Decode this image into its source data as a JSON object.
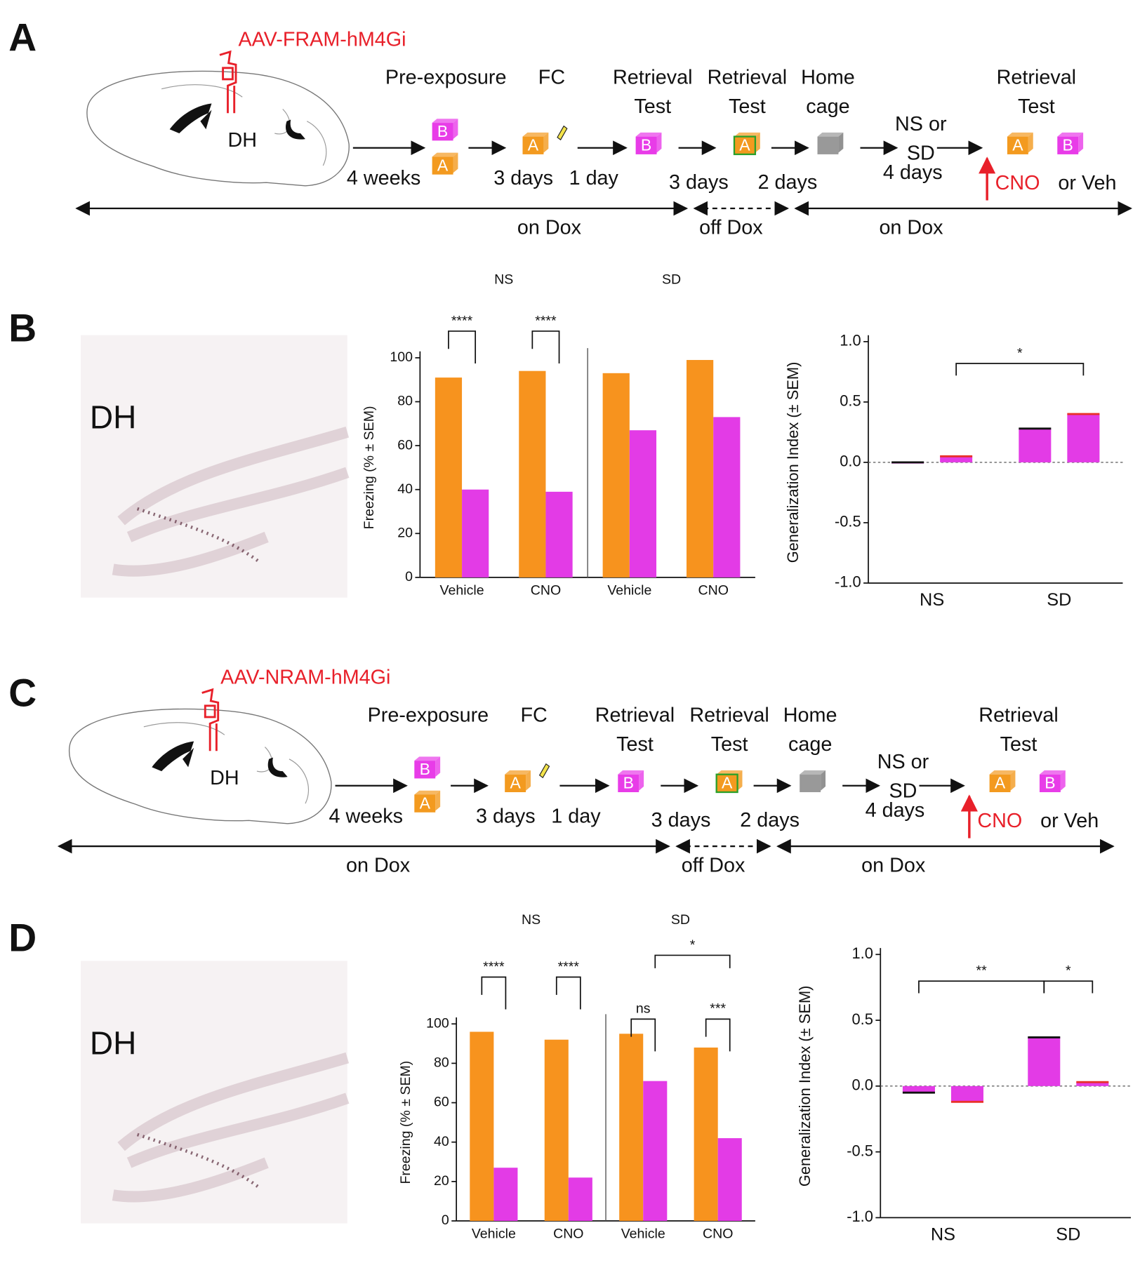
{
  "diagrams": [
    {
      "letter": "A",
      "virus": "AAV-FRAM-hM4Gi",
      "region": "DH",
      "stages": [
        [
          "Pre-exposure"
        ],
        [
          "FC"
        ],
        [
          "Retrieval",
          "Test"
        ],
        [
          "Retrieval",
          "Test"
        ],
        [
          "Home",
          "cage"
        ],
        [
          "NS or",
          "SD"
        ],
        [
          "Retrieval",
          "Test"
        ]
      ],
      "durations": [
        "4 weeks",
        "3 days",
        "1 day",
        "3 days",
        "2 days",
        "4 days"
      ],
      "contexts": [
        "A",
        "B"
      ],
      "injection": [
        "CNO",
        "or Veh"
      ],
      "dox": [
        "on Dox",
        "off Dox",
        "on Dox"
      ]
    },
    {
      "letter": "C",
      "virus": "AAV-NRAM-hM4Gi",
      "region": "DH",
      "stages": [
        [
          "Pre-exposure"
        ],
        [
          "FC"
        ],
        [
          "Retrieval",
          "Test"
        ],
        [
          "Retrieval",
          "Test"
        ],
        [
          "Home",
          "cage"
        ],
        [
          "NS or",
          "SD"
        ],
        [
          "Retrieval",
          "Test"
        ]
      ],
      "durations": [
        "4 weeks",
        "3 days",
        "1 day",
        "3 days",
        "2 days",
        "4 days"
      ],
      "contexts": [
        "A",
        "B"
      ],
      "injection": [
        "CNO",
        "or Veh"
      ],
      "dox": [
        "on Dox",
        "off Dox",
        "on Dox"
      ]
    }
  ],
  "image_panels": [
    {
      "letter": "B",
      "region": "DH"
    },
    {
      "letter": "D",
      "region": "DH"
    }
  ],
  "chart_data": [
    {
      "type": "bar",
      "group_labels": [
        "NS",
        "SD"
      ],
      "categories": [
        "Vehicle",
        "CNO",
        "Vehicle",
        "CNO"
      ],
      "ylabel": "Freezing (% ± SEM)",
      "ylim": [
        0,
        100
      ],
      "yticks": [
        0,
        20,
        40,
        60,
        80,
        100
      ],
      "series": [
        {
          "color": "#f7931e",
          "values": [
            91,
            94,
            93,
            99
          ]
        },
        {
          "color": "#e33be6",
          "values": [
            40,
            39,
            67,
            73
          ]
        }
      ],
      "annotations": [
        "****",
        "****"
      ]
    },
    {
      "type": "dotbar",
      "categories": [
        "NS",
        "SD"
      ],
      "ylabel": "Generalization Index (± SEM)",
      "ylim": [
        -1,
        1
      ],
      "yticks": [
        {
          "value": -1,
          "label": "-1.0"
        },
        {
          "value": -0.5,
          "label": "-0.5"
        },
        {
          "value": 0,
          "label": "0.0"
        },
        {
          "value": 0.5,
          "label": "0.5"
        },
        {
          "value": 1,
          "label": "1.0"
        }
      ],
      "bar_color": "#e33be6",
      "series": [
        {
          "color": "#111111",
          "values": [
            0.0,
            0.28
          ]
        },
        {
          "color": "#e8312a",
          "values": [
            0.05,
            0.4
          ]
        }
      ],
      "annotations": [
        "*"
      ]
    },
    {
      "type": "bar",
      "group_labels": [
        "NS",
        "SD"
      ],
      "categories": [
        "Vehicle",
        "CNO",
        "Vehicle",
        "CNO"
      ],
      "ylabel": "Freezing (% ± SEM)",
      "ylim": [
        0,
        100
      ],
      "yticks": [
        0,
        20,
        40,
        60,
        80,
        100
      ],
      "series": [
        {
          "color": "#f7931e",
          "values": [
            96,
            92,
            95,
            88
          ]
        },
        {
          "color": "#e33be6",
          "values": [
            27,
            22,
            71,
            42
          ]
        }
      ],
      "annotations": [
        "****",
        "****",
        "ns",
        "***",
        "*"
      ]
    },
    {
      "type": "dotbar",
      "categories": [
        "NS",
        "SD"
      ],
      "ylabel": "Generalization Index (± SEM)",
      "ylim": [
        -1,
        1
      ],
      "yticks": [
        {
          "value": -1,
          "label": "-1.0"
        },
        {
          "value": -0.5,
          "label": "-0.5"
        },
        {
          "value": 0,
          "label": "0.0"
        },
        {
          "value": 0.5,
          "label": "0.5"
        },
        {
          "value": 1,
          "label": "1.0"
        }
      ],
      "bar_color": "#e33be6",
      "series": [
        {
          "color": "#111111",
          "values": [
            -0.05,
            0.37
          ]
        },
        {
          "color": "#e8312a",
          "values": [
            -0.12,
            0.03
          ]
        }
      ],
      "annotations": [
        "**",
        "*"
      ]
    }
  ]
}
